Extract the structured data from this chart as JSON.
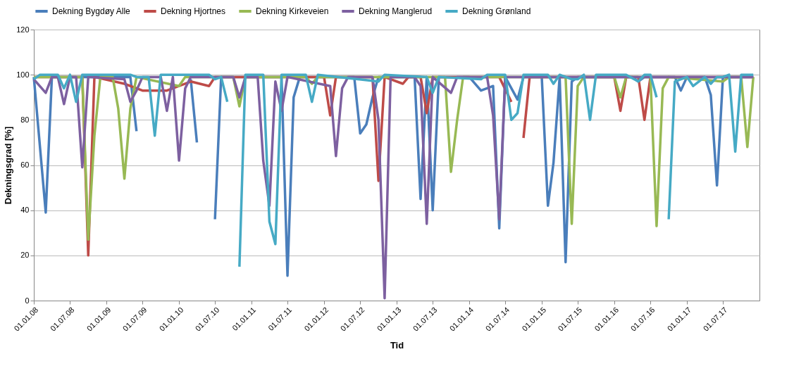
{
  "chart_data": {
    "type": "line",
    "xlabel": "Tid",
    "ylabel": "Dekningsgrad [%]",
    "legend": "top",
    "grid": "y",
    "marker": "none",
    "line_style": "solid",
    "xlim": [
      "2008-01-01",
      "2018-01-01"
    ],
    "ylim": [
      0,
      120
    ],
    "yticks": [
      0,
      20,
      40,
      60,
      80,
      100,
      120
    ],
    "xticks": [
      {
        "value": "2008-01-01",
        "label": "01.01.08"
      },
      {
        "value": "2008-07-01",
        "label": "01.07.08"
      },
      {
        "value": "2009-01-01",
        "label": "01.01.09"
      },
      {
        "value": "2009-07-01",
        "label": "01.07.09"
      },
      {
        "value": "2010-01-01",
        "label": "01.01.10"
      },
      {
        "value": "2010-07-01",
        "label": "01.07.10"
      },
      {
        "value": "2011-01-01",
        "label": "01.01.11"
      },
      {
        "value": "2011-07-01",
        "label": "01.07.11"
      },
      {
        "value": "2012-01-01",
        "label": "01.01.12"
      },
      {
        "value": "2012-07-01",
        "label": "01.07.12"
      },
      {
        "value": "2013-01-01",
        "label": "01.01.13"
      },
      {
        "value": "2013-07-01",
        "label": "01.07.13"
      },
      {
        "value": "2014-01-01",
        "label": "01.01.14"
      },
      {
        "value": "2014-07-01",
        "label": "01.07.14"
      },
      {
        "value": "2015-01-01",
        "label": "01.01.15"
      },
      {
        "value": "2015-07-01",
        "label": "01.07.15"
      },
      {
        "value": "2016-01-01",
        "label": "01.01.16"
      },
      {
        "value": "2016-07-01",
        "label": "01.07.16"
      },
      {
        "value": "2017-01-01",
        "label": "01.01.17"
      },
      {
        "value": "2017-07-01",
        "label": "01.07.17"
      }
    ],
    "series": [
      {
        "name": "Dekning Bygdøy Alle",
        "color": "#4a7ebb",
        "x": [
          "2008-01",
          "2008-03",
          "2008-04",
          "2009-04",
          "2009-05",
          "2009-06",
          "2009-07",
          "2010-03",
          "2010-04",
          "2010-05",
          "2010-07",
          "2010-08",
          "2010-12",
          "2011-06",
          "2011-07",
          "2011-08",
          "2011-09",
          "2012-03",
          "2012-06",
          "2012-07",
          "2012-08",
          "2012-09",
          "2012-10",
          "2012-11",
          "2013-04",
          "2013-05",
          "2013-06",
          "2013-07",
          "2013-08",
          "2014-01",
          "2014-03",
          "2014-04",
          "2014-05",
          "2014-06",
          "2014-07",
          "2014-09",
          "2014-10",
          "2015-01",
          "2015-02",
          "2015-03",
          "2015-04",
          "2015-05",
          "2015-06",
          "2015-07",
          "2016-04",
          "2016-05",
          "2016-06",
          "2016-11",
          "2016-12",
          "2017-01",
          "2017-04",
          "2017-05",
          "2017-06",
          "2017-07",
          "2017-12"
        ],
        "values": [
          99,
          39,
          99,
          99,
          99,
          75,
          null,
          98,
          70,
          null,
          36,
          99,
          99,
          99,
          11,
          90,
          99,
          99,
          99,
          74,
          78,
          90,
          99,
          99,
          99,
          45,
          99,
          40,
          99,
          99,
          93,
          94,
          95,
          32,
          99,
          89,
          99,
          99,
          42,
          61,
          99,
          17,
          97,
          99,
          99,
          97,
          99,
          99,
          93,
          99,
          99,
          91,
          51,
          99,
          99
        ]
      },
      {
        "name": "Dekning Hjortnes",
        "color": "#be4b48",
        "x": [
          "2008-01",
          "2008-09",
          "2008-10",
          "2008-11",
          "2009-04",
          "2009-07",
          "2009-11",
          "2010-01",
          "2010-03",
          "2010-06",
          "2010-07",
          "2012-01",
          "2012-02",
          "2012-03",
          "2012-09",
          "2012-10",
          "2012-11",
          "2013-02",
          "2013-03",
          "2013-05",
          "2013-06",
          "2013-07",
          "2014-06",
          "2014-08",
          "2014-09",
          "2014-10",
          "2014-11",
          "2016-01",
          "2016-02",
          "2016-03",
          "2016-05",
          "2016-06",
          "2016-07",
          "2017-12"
        ],
        "values": [
          99,
          99,
          20,
          99,
          96,
          93,
          93,
          95,
          97,
          95,
          99,
          99,
          82,
          99,
          99,
          53,
          99,
          96,
          99,
          99,
          83,
          99,
          99,
          88,
          null,
          72,
          99,
          99,
          84,
          99,
          99,
          80,
          99,
          99
        ]
      },
      {
        "name": "Dekning Kirkeveien",
        "color": "#98b954",
        "x": [
          "2008-01",
          "2008-09",
          "2008-10",
          "2008-11",
          "2008-12",
          "2009-02",
          "2009-03",
          "2009-04",
          "2009-05",
          "2009-06",
          "2010-01",
          "2010-02",
          "2010-10",
          "2010-11",
          "2010-12",
          "2011-10",
          "2011-11",
          "2011-12",
          "2013-09",
          "2013-10",
          "2013-11",
          "2013-12",
          "2015-04",
          "2015-05",
          "2015-06",
          "2015-07",
          "2015-08",
          "2016-01",
          "2016-02",
          "2016-03",
          "2016-07",
          "2016-08",
          "2016-09",
          "2016-10",
          "2017-07",
          "2017-08",
          "2017-10",
          "2017-11",
          "2017-12"
        ],
        "values": [
          99,
          99,
          27,
          73,
          99,
          99,
          85,
          54,
          85,
          99,
          95,
          99,
          99,
          86,
          99,
          99,
          96,
          99,
          99,
          57,
          80,
          99,
          99,
          99,
          34,
          95,
          99,
          99,
          90,
          99,
          99,
          33,
          94,
          99,
          97,
          99,
          99,
          68,
          99
        ]
      },
      {
        "name": "Dekning Manglerud",
        "color": "#7d60a0",
        "x": [
          "2008-01",
          "2008-03",
          "2008-04",
          "2008-05",
          "2008-06",
          "2008-07",
          "2008-08",
          "2008-09",
          "2008-10",
          "2009-04",
          "2009-05",
          "2009-06",
          "2009-07",
          "2009-10",
          "2009-11",
          "2009-12",
          "2010-01",
          "2010-02",
          "2010-03",
          "2010-10",
          "2010-11",
          "2010-12",
          "2011-02",
          "2011-03",
          "2011-04",
          "2011-05",
          "2011-06",
          "2011-07",
          "2012-02",
          "2012-03",
          "2012-04",
          "2012-05",
          "2012-09",
          "2012-10",
          "2012-11",
          "2012-12",
          "2013-04",
          "2013-05",
          "2013-06",
          "2013-07",
          "2013-10",
          "2013-11",
          "2014-04",
          "2014-05",
          "2014-06",
          "2014-07",
          "2017-12"
        ],
        "values": [
          98,
          92,
          99,
          99,
          87,
          99,
          99,
          59,
          99,
          98,
          88,
          93,
          99,
          99,
          84,
          99,
          62,
          94,
          99,
          99,
          90,
          99,
          99,
          62,
          42,
          97,
          84,
          99,
          95,
          64,
          94,
          99,
          99,
          80,
          1,
          99,
          99,
          95,
          34,
          99,
          92,
          99,
          99,
          82,
          36,
          99,
          99
        ]
      },
      {
        "name": "Dekning Grønland",
        "color": "#46aac5",
        "x": [
          "2008-01",
          "2008-02",
          "2008-05",
          "2008-06",
          "2008-07",
          "2008-08",
          "2008-09",
          "2009-05",
          "2009-06",
          "2009-08",
          "2009-09",
          "2009-10",
          "2010-06",
          "2010-07",
          "2010-08",
          "2010-09",
          "2010-10",
          "2010-11",
          "2010-12",
          "2011-03",
          "2011-04",
          "2011-05",
          "2011-06",
          "2011-10",
          "2011-11",
          "2011-12",
          "2012-10",
          "2012-11",
          "2013-06",
          "2013-07",
          "2013-08",
          "2014-03",
          "2014-04",
          "2014-07",
          "2014-08",
          "2014-09",
          "2014-10",
          "2015-02",
          "2015-03",
          "2015-04",
          "2015-06",
          "2015-07",
          "2015-08",
          "2015-09",
          "2015-10",
          "2016-03",
          "2016-05",
          "2016-06",
          "2016-07",
          "2016-08",
          "2016-09",
          "2016-10",
          "2016-11",
          "2017-01",
          "2017-02",
          "2017-04",
          "2017-05",
          "2017-06",
          "2017-07",
          "2017-08",
          "2017-09",
          "2017-10",
          "2017-12"
        ],
        "values": [
          98,
          100,
          100,
          94,
          100,
          88,
          100,
          100,
          99,
          99,
          73,
          100,
          100,
          98,
          99,
          88,
          null,
          15,
          100,
          100,
          35,
          25,
          100,
          100,
          88,
          100,
          97,
          100,
          99,
          92,
          99,
          98,
          100,
          100,
          80,
          83,
          100,
          100,
          96,
          100,
          98,
          98,
          100,
          80,
          100,
          100,
          97,
          100,
          100,
          90,
          null,
          36,
          97,
          99,
          95,
          99,
          96,
          99,
          99,
          100,
          66,
          100,
          100
        ]
      }
    ]
  }
}
